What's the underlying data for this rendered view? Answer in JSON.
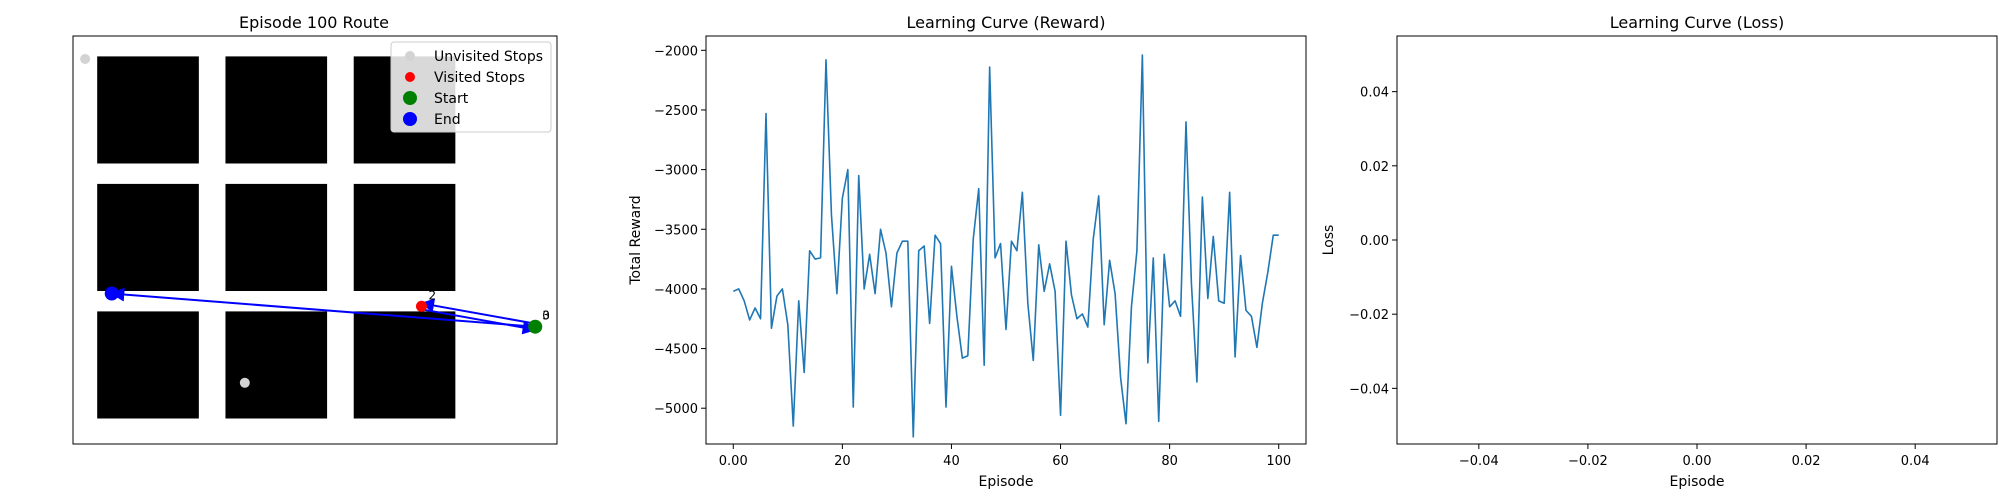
{
  "chart_data": [
    {
      "type": "scatter",
      "title": "Episode 100 Route",
      "xlabel": "",
      "ylabel": "",
      "xlim": [
        0,
        10
      ],
      "ylim": [
        0,
        8
      ],
      "grid": false,
      "legend_position": "top-right",
      "legend": [
        "Unvisited Stops",
        "Visited Stops",
        "Start",
        "End"
      ],
      "colors": {
        "unvisited": "#d3d3d3",
        "visited": "#ff0000",
        "start": "#008000",
        "end": "#0000ff",
        "route": "#0000ff",
        "block": "#000000"
      },
      "blocks": [
        {
          "x0": 0.5,
          "x1": 2.6,
          "y0": 5.5,
          "y1": 7.6
        },
        {
          "x0": 3.15,
          "x1": 5.25,
          "y0": 5.5,
          "y1": 7.6
        },
        {
          "x0": 5.8,
          "x1": 7.9,
          "y0": 5.5,
          "y1": 7.6
        },
        {
          "x0": 0.5,
          "x1": 2.6,
          "y0": 3.0,
          "y1": 5.1
        },
        {
          "x0": 3.15,
          "x1": 5.25,
          "y0": 3.0,
          "y1": 5.1
        },
        {
          "x0": 5.8,
          "x1": 7.9,
          "y0": 3.0,
          "y1": 5.1
        },
        {
          "x0": 0.5,
          "x1": 2.6,
          "y0": 0.5,
          "y1": 2.6
        },
        {
          "x0": 3.15,
          "x1": 5.25,
          "y0": 0.5,
          "y1": 2.6
        },
        {
          "x0": 5.8,
          "x1": 7.9,
          "y0": 0.5,
          "y1": 2.6
        }
      ],
      "unvisited_stops": [
        {
          "x": 0.25,
          "y": 7.55
        },
        {
          "x": 3.55,
          "y": 1.2
        }
      ],
      "visited_stops": [
        {
          "x": 7.2,
          "y": 2.7,
          "label": "2"
        }
      ],
      "start": {
        "x": 9.55,
        "y": 2.3,
        "label": "0"
      },
      "end": {
        "x": 0.8,
        "y": 2.95
      },
      "route": [
        {
          "x": 9.55,
          "y": 2.3
        },
        {
          "x": 7.2,
          "y": 2.7
        },
        {
          "x": 9.55,
          "y": 2.3
        },
        {
          "x": 0.8,
          "y": 2.95
        }
      ],
      "point_labels": [
        {
          "text": "2",
          "x": 7.2,
          "y": 2.7
        },
        {
          "text": "3",
          "x": 9.55,
          "y": 2.3
        },
        {
          "text": "0",
          "x": 9.55,
          "y": 2.3
        }
      ]
    },
    {
      "type": "line",
      "title": "Learning Curve (Reward)",
      "xlabel": "Episode",
      "ylabel": "Total Reward",
      "xlim": [
        -5,
        105
      ],
      "ylim": [
        -5300,
        -1880
      ],
      "xticks": [
        0,
        20,
        40,
        60,
        80,
        100
      ],
      "yticks": [
        -5000,
        -4500,
        -4000,
        -3500,
        -3000,
        -2500,
        -2000
      ],
      "grid": false,
      "color": "#1f77b4",
      "series": [
        {
          "x": [
            0,
            1,
            2,
            3,
            4,
            5,
            6,
            7,
            8,
            9,
            10,
            11,
            12,
            13,
            14,
            15,
            16,
            17,
            18,
            19,
            20,
            21,
            22,
            23,
            24,
            25,
            26,
            27,
            28,
            29,
            30,
            31,
            32,
            33,
            34,
            35,
            36,
            37,
            38,
            39,
            40,
            41,
            42,
            43,
            44,
            45,
            46,
            47,
            48,
            49,
            50,
            51,
            52,
            53,
            54,
            55,
            56,
            57,
            58,
            59,
            60,
            61,
            62,
            63,
            64,
            65,
            66,
            67,
            68,
            69,
            70,
            71,
            72,
            73,
            74,
            75,
            76,
            77,
            78,
            79,
            80,
            81,
            82,
            83,
            84,
            85,
            86,
            87,
            88,
            89,
            90,
            91,
            92,
            93,
            94,
            95,
            96,
            97,
            98,
            99,
            100
          ],
          "values": [
            -4020,
            -4000,
            -4100,
            -4260,
            -4160,
            -4250,
            -2530,
            -4330,
            -4060,
            -4000,
            -4300,
            -5150,
            -4100,
            -4700,
            -3680,
            -3750,
            -3740,
            -2080,
            -3380,
            -4040,
            -3240,
            -3000,
            -4990,
            -3050,
            -4000,
            -3710,
            -4040,
            -3500,
            -3700,
            -4150,
            -3700,
            -3600,
            -3600,
            -5240,
            -3680,
            -3640,
            -4290,
            -3550,
            -3620,
            -4990,
            -3810,
            -4230,
            -4580,
            -4560,
            -3580,
            -3160,
            -4640,
            -2140,
            -3740,
            -3620,
            -4340,
            -3600,
            -3680,
            -3190,
            -4120,
            -4600,
            -3630,
            -4020,
            -3790,
            -4020,
            -5060,
            -3600,
            -4050,
            -4250,
            -4210,
            -4320,
            -3580,
            -3220,
            -4300,
            -3760,
            -4040,
            -4740,
            -5130,
            -4150,
            -3680,
            -2040,
            -4620,
            -3740,
            -5110,
            -3710,
            -4150,
            -4100,
            -4230,
            -2600,
            -3960,
            -4780,
            -3230,
            -4080,
            -3560,
            -4100,
            -4120,
            -3190,
            -4570,
            -3720,
            -4180,
            -4230,
            -4490,
            -4120,
            -3860,
            -3550,
            -3550
          ]
        }
      ]
    },
    {
      "type": "line",
      "title": "Learning Curve (Loss)",
      "xlabel": "Episode",
      "ylabel": "Loss",
      "xlim": [
        -0.055,
        0.055
      ],
      "ylim": [
        -0.055,
        0.055
      ],
      "xticks": [
        -0.04,
        -0.02,
        0.0,
        0.02,
        0.04
      ],
      "yticks": [
        -0.04,
        -0.02,
        0.0,
        0.02,
        0.04
      ],
      "grid": false,
      "series": []
    }
  ]
}
